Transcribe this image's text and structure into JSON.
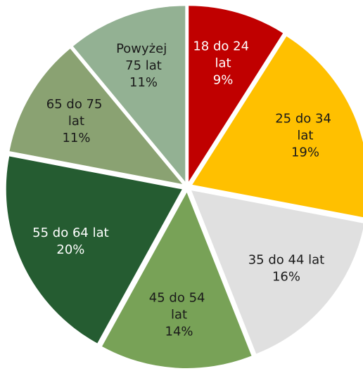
{
  "chart_data": {
    "type": "pie",
    "categories": [
      "18 do 24 lat",
      "25 do 34 lat",
      "35 do 44 lat",
      "45 do 54 lat",
      "55 do 64 lat",
      "65 do 75 lat",
      "Powyżej 75 lat"
    ],
    "values": [
      9,
      19,
      16,
      14,
      20,
      11,
      11
    ],
    "value_labels": [
      "9%",
      "19%",
      "16%",
      "14%",
      "20%",
      "11%",
      "11%"
    ],
    "colors": [
      "#c00000",
      "#ffc000",
      "#e0e0e0",
      "#78a257",
      "#255c31",
      "#8aa272",
      "#93b193"
    ]
  }
}
